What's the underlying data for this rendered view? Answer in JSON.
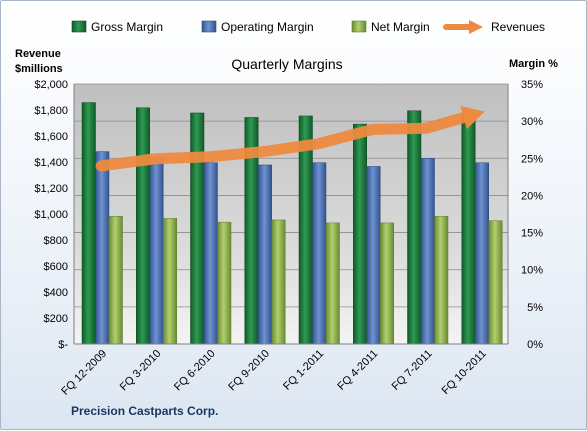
{
  "chart_data": {
    "type": "bar",
    "title": "Quarterly Margins",
    "categories": [
      "FQ 12-2009",
      "FQ 3-2010",
      "FQ 6-2010",
      "FQ 9-2010",
      "FQ 1-2011",
      "FQ 4-2011",
      "FQ 7-2011",
      "FQ 10-2011"
    ],
    "series": [
      {
        "name": "Gross Margin",
        "axis": "right",
        "color": "#1f7a3e",
        "values": [
          32.5,
          31.8,
          31.1,
          30.5,
          30.7,
          29.6,
          31.4,
          30.8
        ]
      },
      {
        "name": "Operating Margin",
        "axis": "right",
        "color": "#4f74b8",
        "values": [
          25.9,
          25.1,
          24.4,
          24.1,
          24.4,
          23.9,
          25.0,
          24.4
        ]
      },
      {
        "name": "Net Margin",
        "axis": "right",
        "color": "#8fb34f",
        "values": [
          17.2,
          16.9,
          16.4,
          16.7,
          16.3,
          16.3,
          17.2,
          16.6
        ]
      },
      {
        "name": "Revenues",
        "axis": "left",
        "type": "line",
        "color": "#ed8a3f",
        "values": [
          1370,
          1425,
          1440,
          1480,
          1540,
          1650,
          1660,
          1780
        ]
      }
    ],
    "ylabel_left": "Revenue $millions",
    "ylabel_right": "Margin %",
    "ylim_left": [
      0,
      2000
    ],
    "ylim_right": [
      0,
      35
    ],
    "yticks_left": [
      "$-",
      "$200",
      "$400",
      "$600",
      "$800",
      "$1,000",
      "$1,200",
      "$1,400",
      "$1,600",
      "$1,800",
      "$2,000"
    ],
    "yticks_right": [
      "0%",
      "5%",
      "10%",
      "15%",
      "20%",
      "25%",
      "30%",
      "35%"
    ],
    "legend": "top",
    "grid": true
  },
  "footer": {
    "company": "Precision Castparts Corp."
  }
}
